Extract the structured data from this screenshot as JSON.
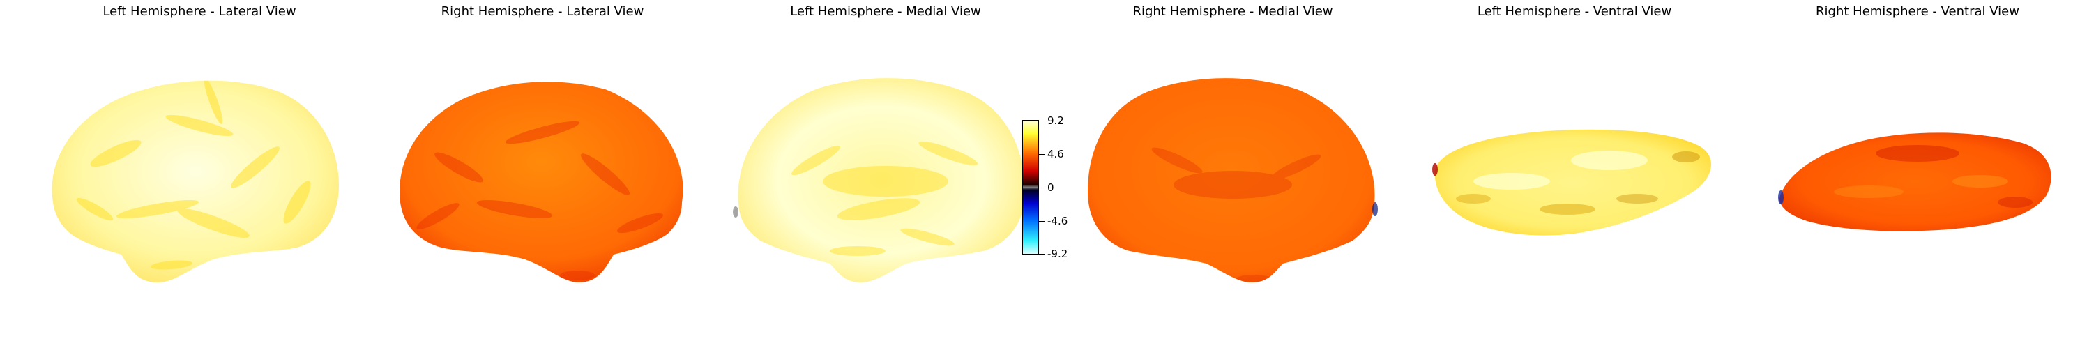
{
  "panels": [
    {
      "title": "Left Hemisphere - Lateral View",
      "shape": "lateral",
      "palette": "yellow"
    },
    {
      "title": "Right Hemisphere - Lateral View",
      "shape": "lateral-r",
      "palette": "orange"
    },
    {
      "title": "Left Hemisphere - Medial View",
      "shape": "medial",
      "palette": "yellow"
    },
    {
      "title": "Right Hemisphere - Medial View",
      "shape": "medial-r",
      "palette": "orange"
    },
    {
      "title": "Left Hemisphere - Ventral View",
      "shape": "ventral",
      "palette": "yellow"
    },
    {
      "title": "Right Hemisphere - Ventral View",
      "shape": "ventral-r",
      "palette": "orange"
    }
  ],
  "colorbar": {
    "ticks": [
      "9.2",
      "4.6",
      "0",
      "-4.6",
      "-9.2"
    ],
    "colormap": "cold_hot",
    "vmin": -9.2,
    "vmax": 9.2
  },
  "colors": {
    "yellow_fill": "#fffaa8",
    "yellow_mottle": "#ffe030",
    "orange_fill": "#ff6a05",
    "orange_mottle": "#ff3a00"
  }
}
